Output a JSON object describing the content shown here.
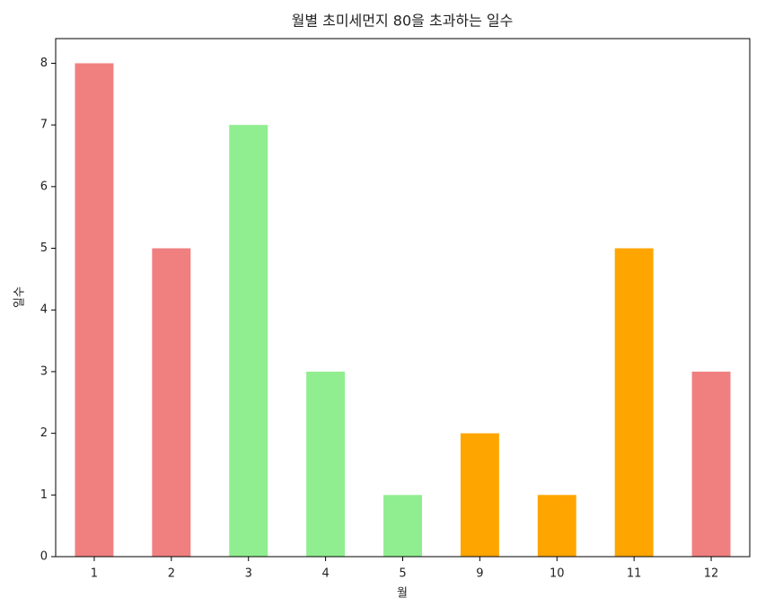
{
  "chart_data": {
    "type": "bar",
    "title": "월별 초미세먼지 80을 초과하는 일수",
    "x_label": "월",
    "y_label": "일수",
    "categories": [
      "1",
      "2",
      "3",
      "4",
      "5",
      "9",
      "10",
      "11",
      "12"
    ],
    "values": [
      8,
      5,
      7,
      3,
      1,
      2,
      1,
      5,
      3
    ],
    "colors": [
      "#f08080",
      "#f08080",
      "#90ee90",
      "#90ee90",
      "#90ee90",
      "#ffa500",
      "#ffa500",
      "#ffa500",
      "#f08080"
    ],
    "ylim": [
      0,
      8.4
    ],
    "yticks": [
      0,
      1,
      2,
      3,
      4,
      5,
      6,
      7,
      8
    ],
    "grid": false
  }
}
